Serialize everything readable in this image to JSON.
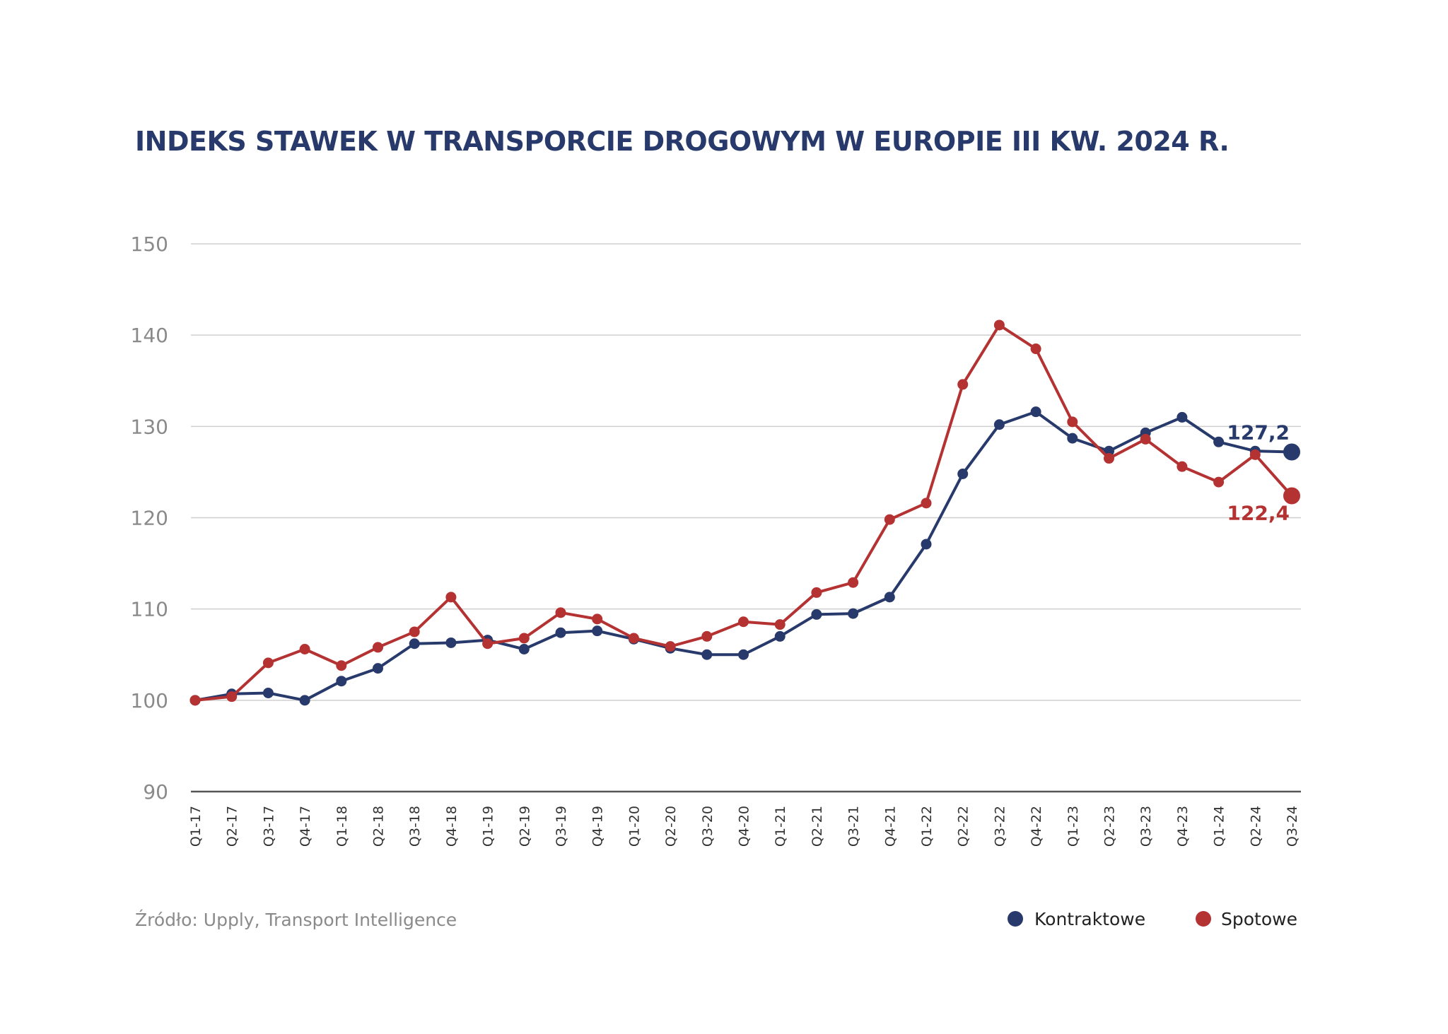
{
  "chart_data": {
    "type": "line",
    "title": "INDEKS STAWEK W TRANSPORCIE DROGOWYM W EUROPIE III KW. 2024 R.",
    "source": "Źródło: Upply, Transport Intelligence",
    "ylim": [
      90,
      150
    ],
    "yticks": [
      "90",
      "100",
      "110",
      "120",
      "130",
      "140",
      "150"
    ],
    "grid": true,
    "legend_position": "bottom-right",
    "categories": [
      "Q1-17",
      "Q2-17",
      "Q3-17",
      "Q4-17",
      "Q1-18",
      "Q2-18",
      "Q3-18",
      "Q4-18",
      "Q1-19",
      "Q2-19",
      "Q3-19",
      "Q4-19",
      "Q1-20",
      "Q2-20",
      "Q3-20",
      "Q4-20",
      "Q1-21",
      "Q2-21",
      "Q3-21",
      "Q4-21",
      "Q1-22",
      "Q2-22",
      "Q3-22",
      "Q4-22",
      "Q1-23",
      "Q2-23",
      "Q3-23",
      "Q4-23",
      "Q1-24",
      "Q2-24",
      "Q3-24"
    ],
    "series": [
      {
        "name": "Kontraktowe",
        "color": "#283a6b",
        "end_label": "127,2",
        "values": [
          100.0,
          100.7,
          100.8,
          100.0,
          102.1,
          103.5,
          106.2,
          106.3,
          106.6,
          105.6,
          107.4,
          107.6,
          106.7,
          105.7,
          105.0,
          105.0,
          107.0,
          109.4,
          109.5,
          111.3,
          117.1,
          124.8,
          130.2,
          131.6,
          128.7,
          127.3,
          129.3,
          131.0,
          128.3,
          127.3,
          127.2
        ]
      },
      {
        "name": "Spotowe",
        "color": "#b43232",
        "end_label": "122,4",
        "values": [
          100.0,
          100.4,
          104.1,
          105.6,
          103.8,
          105.8,
          107.5,
          111.3,
          106.2,
          106.8,
          109.6,
          108.9,
          106.8,
          105.9,
          107.0,
          108.6,
          108.3,
          111.8,
          112.9,
          119.8,
          121.6,
          134.6,
          141.1,
          138.5,
          130.5,
          126.5,
          128.6,
          125.6,
          123.9,
          126.9,
          122.4
        ]
      }
    ]
  }
}
